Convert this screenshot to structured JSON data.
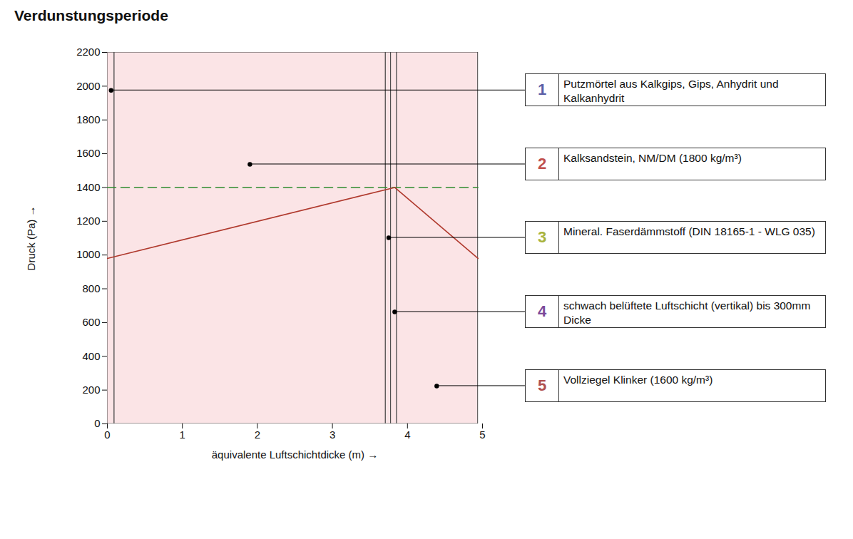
{
  "chart_data": {
    "type": "line",
    "title": "Verdunstungsperiode",
    "xlabel": "äquivalente Luftschichtdicke (m)",
    "ylabel": "Druck (Pa)",
    "xlim": [
      0,
      5
    ],
    "ylim": [
      0,
      2200
    ],
    "xticks": [
      0,
      1,
      2,
      3,
      4,
      5
    ],
    "yticks": [
      0,
      200,
      400,
      600,
      800,
      1000,
      1200,
      1400,
      1600,
      1800,
      2000,
      2200
    ],
    "grid": false,
    "series": [
      {
        "color": "#2e8b2e",
        "line_style": "dashed",
        "x": [
          0,
          4.94
        ],
        "values": [
          1400,
          1400
        ]
      },
      {
        "color": "#b03a2e",
        "line_style": "solid",
        "x": [
          0,
          3.83,
          4.94
        ],
        "values": [
          980,
          1400,
          980
        ]
      }
    ],
    "layers": [
      {
        "number": 1,
        "label": "Putzmörtel aus Kalkgips, Gips, Anhydrit und Kalkanhydrit",
        "x0": 0,
        "x1": 0.095,
        "color": "#5b5ea6",
        "point": [
          0.05,
          1975
        ]
      },
      {
        "number": 2,
        "label": "Kalksandstein, NM/DM  (1800 kg/m³)",
        "x0": 0.095,
        "x1": 3.71,
        "color": "#c0504d",
        "point": [
          1.9,
          1537
        ]
      },
      {
        "number": 3,
        "label": "Mineral. Faserdämmstoff  (DIN 18165-1 - WLG 035)",
        "x0": 3.71,
        "x1": 3.78,
        "color": "#a8b33c",
        "point": [
          3.75,
          1102
        ]
      },
      {
        "number": 4,
        "label": "schwach belüftete Luftschicht (vertikal) bis 300mm Dicke",
        "x0": 3.78,
        "x1": 3.86,
        "color": "#7b4a9a",
        "point": [
          3.83,
          663
        ]
      },
      {
        "number": 5,
        "label": "Vollziegel Klinker (1600 kg/m³)",
        "x0": 3.86,
        "x1": 4.94,
        "color": "#b05050",
        "point": [
          4.39,
          224
        ]
      }
    ]
  }
}
